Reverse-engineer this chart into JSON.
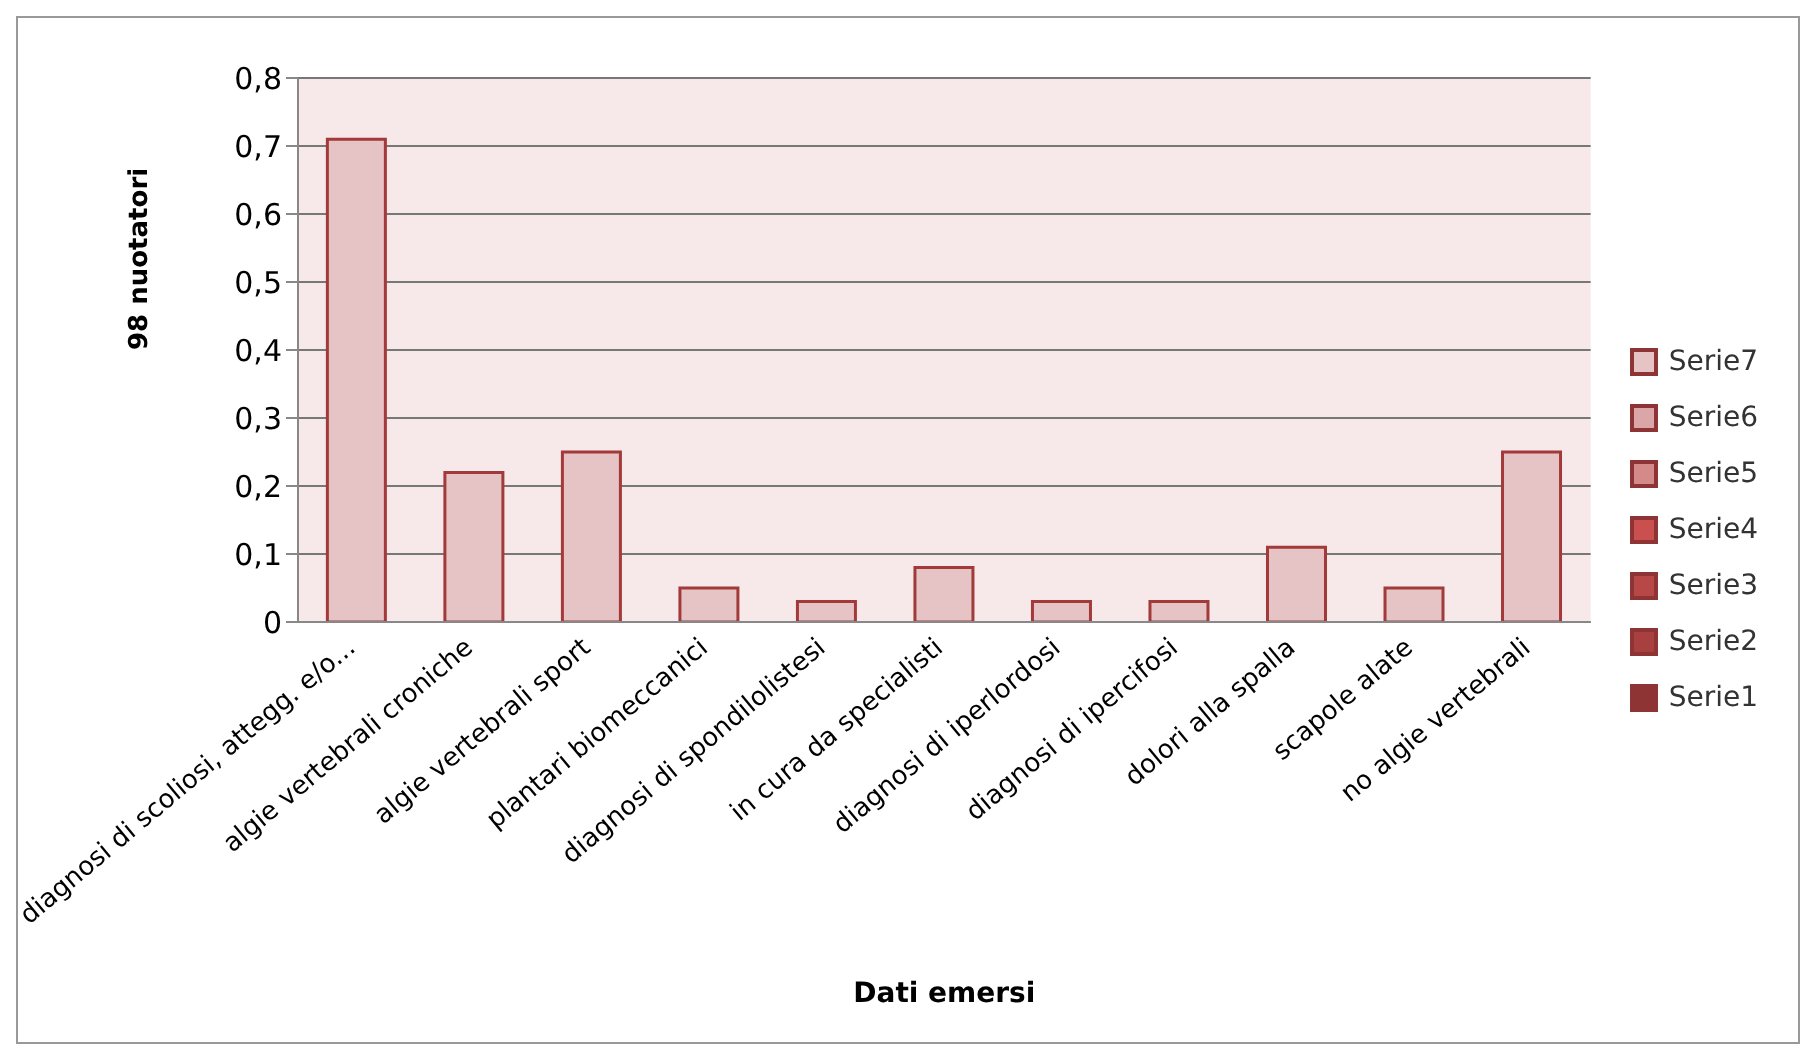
{
  "chart_data": {
    "type": "bar",
    "xlabel": "Dati emersi",
    "ylabel": "98 nuotatori",
    "categories": [
      "diagnosi di scoliosi, attegg. e/o...",
      "algie vertebrali croniche",
      "algie vertebrali sport",
      "plantari biomeccanici",
      "diagnosi di spondilolistesi",
      "in cura da specialisti",
      "diagnosi di iperlordosi",
      "diagnosi di ipercifosi",
      "dolori alla spalla",
      "scapole alate",
      "no algie vertebrali"
    ],
    "series": [
      {
        "name": "Serie7",
        "color": "#e6c3c5",
        "values": [
          0.71,
          0.22,
          0.25,
          0.05,
          0.03,
          0.08,
          0.03,
          0.03,
          0.11,
          0.05,
          0.25
        ]
      },
      {
        "name": "Serie6",
        "color": "#dba6a8",
        "values": [
          null,
          null,
          null,
          null,
          null,
          null,
          null,
          null,
          null,
          null,
          null
        ]
      },
      {
        "name": "Serie5",
        "color": "#d48a89",
        "values": [
          null,
          null,
          null,
          null,
          null,
          null,
          null,
          null,
          null,
          null,
          null
        ]
      },
      {
        "name": "Serie4",
        "color": "#c9504f",
        "values": [
          null,
          null,
          null,
          null,
          null,
          null,
          null,
          null,
          null,
          null,
          null
        ]
      },
      {
        "name": "Serie3",
        "color": "#b84848",
        "values": [
          null,
          null,
          null,
          null,
          null,
          null,
          null,
          null,
          null,
          null,
          null
        ]
      },
      {
        "name": "Serie2",
        "color": "#a84040",
        "values": [
          null,
          null,
          null,
          null,
          null,
          null,
          null,
          null,
          null,
          null,
          null
        ]
      },
      {
        "name": "Serie1",
        "color": "#8e3434",
        "values": [
          null,
          null,
          null,
          null,
          null,
          null,
          null,
          null,
          null,
          null,
          null
        ]
      }
    ],
    "ylim": [
      0,
      0.8
    ],
    "yticks": [
      {
        "value": 0,
        "label": "0"
      },
      {
        "value": 0.1,
        "label": "0,1"
      },
      {
        "value": 0.2,
        "label": "0,2"
      },
      {
        "value": 0.3,
        "label": "0,3"
      },
      {
        "value": 0.4,
        "label": "0,4"
      },
      {
        "value": 0.5,
        "label": "0,5"
      },
      {
        "value": 0.6,
        "label": "0,6"
      },
      {
        "value": 0.7,
        "label": "0,7"
      },
      {
        "value": 0.8,
        "label": "0,8"
      }
    ],
    "grid": "y",
    "legend": "right"
  }
}
